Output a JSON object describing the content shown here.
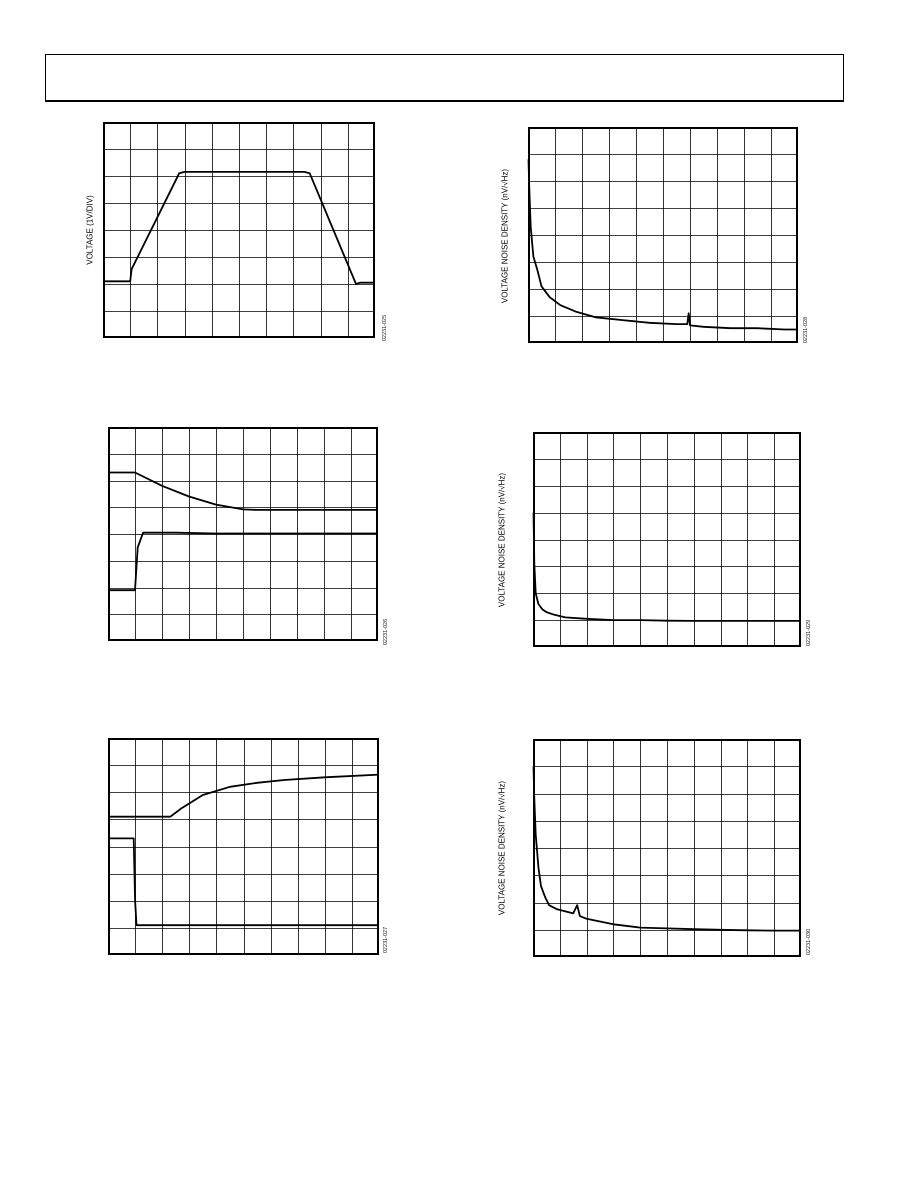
{
  "page": {
    "header_text": ""
  },
  "figures": [
    {
      "id": "fig-left-1",
      "ylabel": "VOLTAGE (1V/DIV)",
      "fig_id": "02231-025"
    },
    {
      "id": "fig-right-1",
      "ylabel": "VOLTAGE NOISE DENSITY (nV/√Hz)",
      "fig_id": "02231-028"
    },
    {
      "id": "fig-left-2",
      "ylabel": "",
      "fig_id": "02231-026"
    },
    {
      "id": "fig-right-2",
      "ylabel": "VOLTAGE NOISE DENSITY (nV/√Hz)",
      "fig_id": "02231-029"
    },
    {
      "id": "fig-left-3",
      "ylabel": "",
      "fig_id": "02231-027"
    },
    {
      "id": "fig-right-3",
      "ylabel": "VOLTAGE NOISE DENSITY (nV/√Hz)",
      "fig_id": "02231-030"
    }
  ],
  "chart_data": [
    {
      "type": "line",
      "title": "",
      "xlabel": "",
      "ylabel": "VOLTAGE (1V/DIV)",
      "grid": true,
      "grid_divisions": [
        10,
        8
      ],
      "xlim": [
        0,
        10
      ],
      "ylim": [
        0,
        8
      ],
      "series": [
        {
          "x": [
            0,
            1.0,
            1.05,
            2.8,
            3.0,
            7.4,
            7.6,
            9.3,
            9.45,
            10
          ],
          "y": [
            2.1,
            2.1,
            2.55,
            6.1,
            6.15,
            6.15,
            6.1,
            2.0,
            2.05,
            2.05
          ]
        }
      ]
    },
    {
      "type": "line",
      "title": "",
      "xlabel": "",
      "ylabel": "VOLTAGE NOISE DENSITY (nV/√Hz)",
      "grid": true,
      "grid_divisions": [
        10,
        8
      ],
      "xlim": [
        0,
        10
      ],
      "ylim": [
        0,
        8
      ],
      "series": [
        {
          "x": [
            0.02,
            0.05,
            0.1,
            0.2,
            0.35,
            0.5,
            0.8,
            1.2,
            1.8,
            2.5,
            3.5,
            4.5,
            5.5,
            5.9,
            5.95,
            6.0,
            6.5,
            7.5,
            8.5,
            9.5,
            10
          ],
          "y": [
            6.8,
            5.6,
            4.3,
            3.2,
            2.7,
            2.1,
            1.7,
            1.4,
            1.15,
            0.95,
            0.85,
            0.75,
            0.7,
            0.7,
            1.1,
            0.65,
            0.6,
            0.55,
            0.55,
            0.5,
            0.5
          ]
        }
      ]
    },
    {
      "type": "line",
      "title": "",
      "xlabel": "",
      "ylabel": "",
      "grid": true,
      "grid_divisions": [
        10,
        8
      ],
      "xlim": [
        0,
        10
      ],
      "ylim": [
        0,
        8
      ],
      "series": [
        {
          "x": [
            0,
            1.0,
            2.0,
            3.0,
            4.0,
            5.0,
            5.5,
            6.5,
            8.0,
            10
          ],
          "y": [
            6.3,
            6.3,
            5.8,
            5.4,
            5.1,
            4.92,
            4.9,
            4.9,
            4.9,
            4.9
          ]
        },
        {
          "x": [
            0,
            1.0,
            1.1,
            1.3,
            2.5,
            4.0,
            10
          ],
          "y": [
            1.9,
            1.9,
            3.5,
            4.05,
            4.05,
            4.02,
            4.02
          ]
        }
      ]
    },
    {
      "type": "line",
      "title": "",
      "xlabel": "",
      "ylabel": "VOLTAGE NOISE DENSITY (nV/√Hz)",
      "grid": true,
      "grid_divisions": [
        10,
        8
      ],
      "xlim": [
        0,
        10
      ],
      "ylim": [
        0,
        8
      ],
      "series": [
        {
          "x": [
            0.02,
            0.05,
            0.1,
            0.2,
            0.35,
            0.5,
            0.8,
            1.2,
            2.0,
            3.0,
            4.0,
            5.0,
            6.0,
            7.0,
            8.0,
            9.0,
            10
          ],
          "y": [
            5.0,
            3.1,
            2.0,
            1.6,
            1.4,
            1.3,
            1.2,
            1.1,
            1.05,
            1.0,
            1.0,
            0.98,
            0.97,
            0.97,
            0.97,
            0.97,
            0.97
          ]
        }
      ]
    },
    {
      "type": "line",
      "title": "",
      "xlabel": "",
      "ylabel": "",
      "grid": true,
      "grid_divisions": [
        10,
        8
      ],
      "xlim": [
        0,
        10
      ],
      "ylim": [
        0,
        8
      ],
      "series": [
        {
          "x": [
            0,
            2.3,
            2.7,
            3.5,
            4.5,
            5.5,
            6.5,
            8.0,
            10
          ],
          "y": [
            5.1,
            5.1,
            5.4,
            5.9,
            6.2,
            6.35,
            6.45,
            6.55,
            6.65
          ]
        },
        {
          "x": [
            0,
            0.95,
            1.0,
            1.05,
            2.0,
            6.0,
            10
          ],
          "y": [
            4.3,
            4.3,
            2.0,
            1.1,
            1.1,
            1.1,
            1.1
          ]
        }
      ]
    },
    {
      "type": "line",
      "title": "",
      "xlabel": "",
      "ylabel": "VOLTAGE NOISE DENSITY (nV/√Hz)",
      "grid": true,
      "grid_divisions": [
        10,
        8
      ],
      "xlim": [
        0,
        10
      ],
      "ylim": [
        0,
        8
      ],
      "series": [
        {
          "x": [
            0.02,
            0.05,
            0.1,
            0.2,
            0.3,
            0.45,
            0.6,
            0.9,
            1.5,
            1.65,
            1.75,
            2.0,
            3.0,
            4.0,
            5.0,
            6.0,
            7.0,
            8.0,
            9.0,
            10
          ],
          "y": [
            7.0,
            5.8,
            4.5,
            3.3,
            2.6,
            2.2,
            1.9,
            1.75,
            1.6,
            1.9,
            1.5,
            1.4,
            1.2,
            1.08,
            1.05,
            1.02,
            1.0,
            0.98,
            0.97,
            0.97
          ]
        }
      ]
    }
  ]
}
